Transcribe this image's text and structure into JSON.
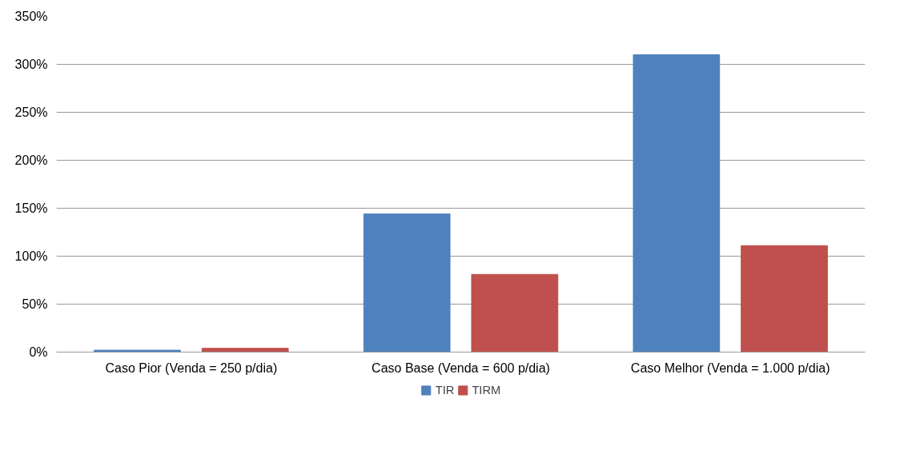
{
  "chart_data": {
    "type": "bar",
    "categories": [
      "Caso Pior (Venda = 250 p/dia)",
      "Caso Base (Venda = 600 p/dia)",
      "Caso Melhor (Venda = 1.000 p/dia)"
    ],
    "series": [
      {
        "name": "TIR",
        "color": "#4f81bd",
        "values": [
          2,
          144,
          310
        ]
      },
      {
        "name": "TIRM",
        "color": "#c0504d",
        "values": [
          4,
          81,
          111
        ]
      }
    ],
    "ylim": [
      0,
      350
    ],
    "yticks": [
      {
        "value": 0,
        "label": "0%"
      },
      {
        "value": 50,
        "label": "50%"
      },
      {
        "value": 100,
        "label": "100%"
      },
      {
        "value": 150,
        "label": "150%"
      },
      {
        "value": 200,
        "label": "200%"
      },
      {
        "value": 250,
        "label": "250%"
      },
      {
        "value": 300,
        "label": "300%"
      },
      {
        "value": 350,
        "label": "350%"
      }
    ],
    "grid": "y",
    "legend": "bottom"
  }
}
